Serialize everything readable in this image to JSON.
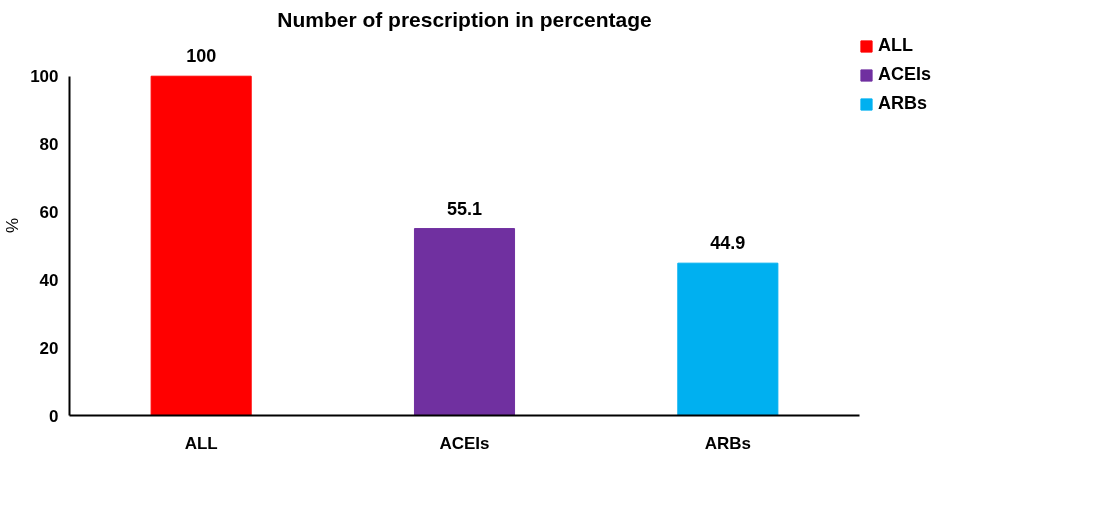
{
  "chart_data": {
    "type": "bar",
    "title": "Number of prescription in percentage",
    "ylabel": "%",
    "categories": [
      "ALL",
      "ACEIs",
      "ARBs"
    ],
    "series": [
      {
        "name": "ALL",
        "color": "#ff0000",
        "values": [
          100,
          null,
          null
        ]
      },
      {
        "name": "ACEIs",
        "color": "#7030a0",
        "values": [
          null,
          55.1,
          null
        ]
      },
      {
        "name": "ARBs",
        "color": "#00b0f0",
        "values": [
          null,
          null,
          44.9
        ]
      }
    ],
    "ylim": [
      0,
      100
    ],
    "yticks": [
      0,
      20,
      40,
      60,
      80,
      100
    ],
    "data_labels": true,
    "legend": "top right"
  }
}
